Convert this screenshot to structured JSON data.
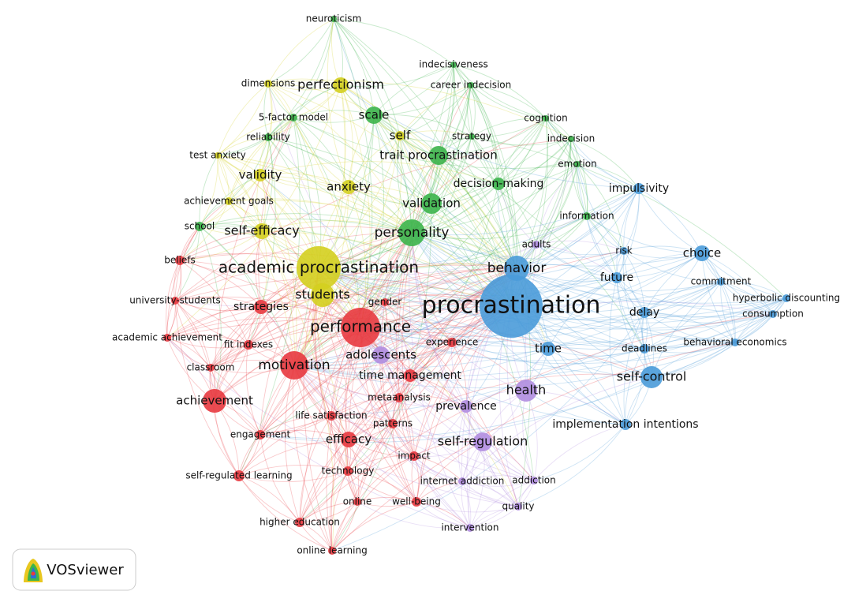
{
  "nodes": [
    {
      "label": "neuroticism"
    },
    {
      "label": "indecisiveness"
    },
    {
      "label": "career indecision"
    },
    {
      "label": "perfectionism"
    },
    {
      "label": "dimensions"
    },
    {
      "label": "5-factor model"
    },
    {
      "label": "scale"
    },
    {
      "label": "cognition"
    },
    {
      "label": "self"
    },
    {
      "label": "strategy"
    },
    {
      "label": "reliability"
    },
    {
      "label": "indecision"
    },
    {
      "label": "trait procrastination"
    },
    {
      "label": "test anxiety"
    },
    {
      "label": "emotion"
    },
    {
      "label": "validity"
    },
    {
      "label": "anxiety"
    },
    {
      "label": "decision-making"
    },
    {
      "label": "impulsivity"
    },
    {
      "label": "achievement goals"
    },
    {
      "label": "validation"
    },
    {
      "label": "information"
    },
    {
      "label": "school"
    },
    {
      "label": "self-efficacy"
    },
    {
      "label": "personality"
    },
    {
      "label": "adults"
    },
    {
      "label": "risk"
    },
    {
      "label": "choice"
    },
    {
      "label": "beliefs"
    },
    {
      "label": "academic procrastination"
    },
    {
      "label": "behavior"
    },
    {
      "label": "future"
    },
    {
      "label": "commitment"
    },
    {
      "label": "university-students"
    },
    {
      "label": "strategies"
    },
    {
      "label": "students"
    },
    {
      "label": "gender"
    },
    {
      "label": "procrastination"
    },
    {
      "label": "hyperbolic discounting"
    },
    {
      "label": "delay"
    },
    {
      "label": "consumption"
    },
    {
      "label": "performance"
    },
    {
      "label": "academic achievement"
    },
    {
      "label": "fit indexes"
    },
    {
      "label": "experience"
    },
    {
      "label": "time"
    },
    {
      "label": "deadlines"
    },
    {
      "label": "behavioral economics"
    },
    {
      "label": "adolescents"
    },
    {
      "label": "motivation"
    },
    {
      "label": "classroom"
    },
    {
      "label": "time management"
    },
    {
      "label": "self-control"
    },
    {
      "label": "health"
    },
    {
      "label": "achievement"
    },
    {
      "label": "metaanalysis"
    },
    {
      "label": "prevalence"
    },
    {
      "label": "life satisfaction"
    },
    {
      "label": "patterns"
    },
    {
      "label": "implementation intentions"
    },
    {
      "label": "engagement"
    },
    {
      "label": "efficacy"
    },
    {
      "label": "self-regulation"
    },
    {
      "label": "impact"
    },
    {
      "label": "self-regulated learning"
    },
    {
      "label": "technology"
    },
    {
      "label": "internet addiction"
    },
    {
      "label": "addiction"
    },
    {
      "label": "quality"
    },
    {
      "label": "online"
    },
    {
      "label": "well-being"
    },
    {
      "label": "higher education"
    },
    {
      "label": "intervention"
    },
    {
      "label": "online learning"
    }
  ],
  "logo": "VOSviewer"
}
